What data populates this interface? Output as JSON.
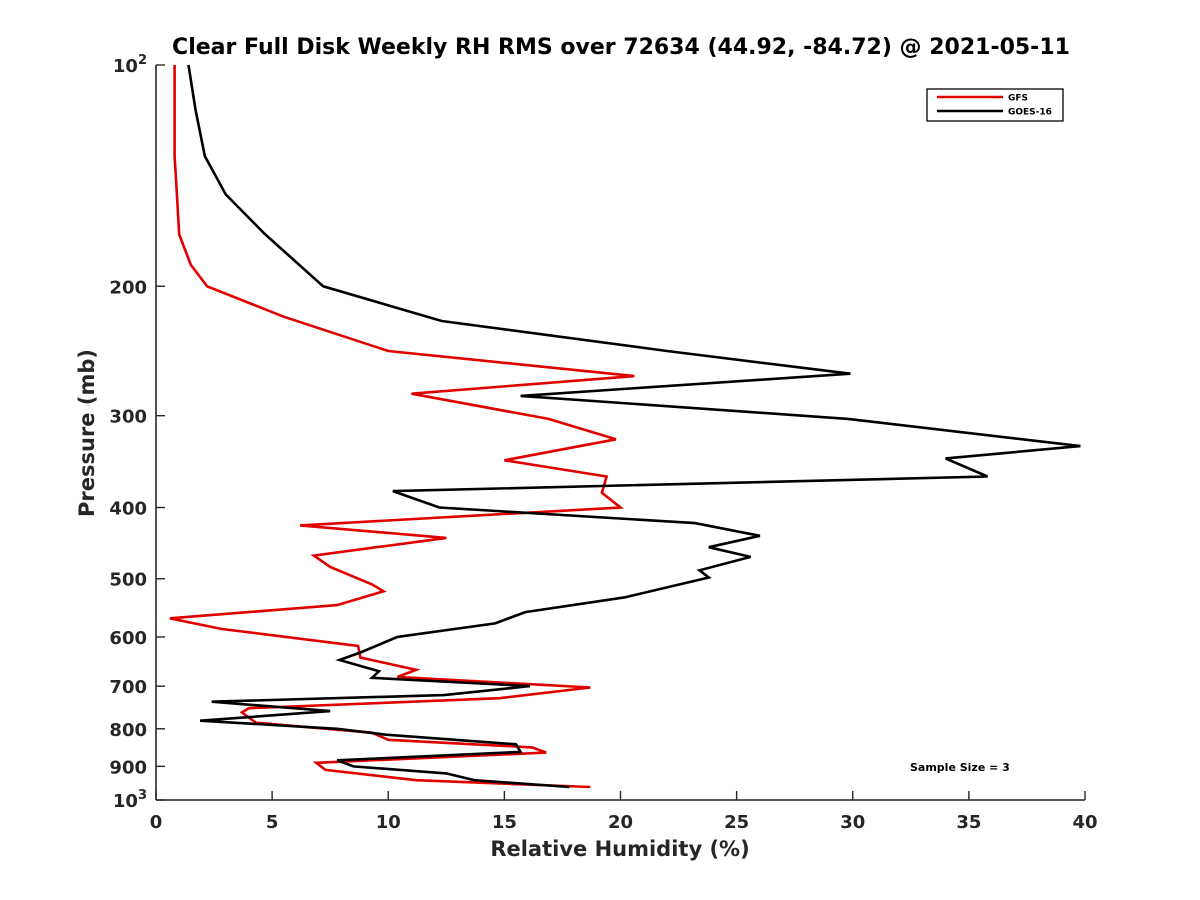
{
  "chart_data": {
    "type": "line",
    "title": "Clear Full Disk Weekly RH RMS over 72634 (44.92, -84.72) @ 2021-05-11",
    "xlabel": "Relative Humidity (%)",
    "ylabel": "Pressure (mb)",
    "xlim": [
      0,
      40
    ],
    "ylim": [
      100,
      1000
    ],
    "yscale": "log",
    "yreversed": true,
    "x_ticks": [
      "0",
      "5",
      "10",
      "15",
      "20",
      "25",
      "30",
      "35",
      "40"
    ],
    "y_ticks": [
      {
        "value": 100,
        "base": "10",
        "exp": "2"
      },
      {
        "value": 200,
        "label": "200"
      },
      {
        "value": 300,
        "label": "300"
      },
      {
        "value": 400,
        "label": "400"
      },
      {
        "value": 500,
        "label": "500"
      },
      {
        "value": 600,
        "label": "600"
      },
      {
        "value": 700,
        "label": "700"
      },
      {
        "value": 800,
        "label": "800"
      },
      {
        "value": 900,
        "label": "900"
      },
      {
        "value": 1000,
        "base": "10",
        "exp": "3"
      }
    ],
    "legend_position": "top-right",
    "annotation": "Sample Size = 3",
    "series": [
      {
        "name": "GFS",
        "color": "#e00000",
        "points": [
          [
            0.8,
            100
          ],
          [
            0.8,
            115
          ],
          [
            0.8,
            133
          ],
          [
            0.9,
            150
          ],
          [
            1.0,
            170
          ],
          [
            1.5,
            187
          ],
          [
            2.2,
            200
          ],
          [
            5.5,
            220
          ],
          [
            10.0,
            245
          ],
          [
            20.6,
            265
          ],
          [
            11.0,
            280
          ],
          [
            16.9,
            303
          ],
          [
            19.8,
            323
          ],
          [
            15.0,
            345
          ],
          [
            19.4,
            363
          ],
          [
            19.2,
            382
          ],
          [
            20.0,
            400
          ],
          [
            6.2,
            423
          ],
          [
            12.5,
            440
          ],
          [
            6.8,
            465
          ],
          [
            7.5,
            482
          ],
          [
            9.3,
            509
          ],
          [
            9.8,
            520
          ],
          [
            7.8,
            543
          ],
          [
            0.6,
            566
          ],
          [
            2.8,
            585
          ],
          [
            8.7,
            617
          ],
          [
            8.8,
            640
          ],
          [
            11.2,
            665
          ],
          [
            10.4,
            680
          ],
          [
            18.7,
            703
          ],
          [
            14.8,
            727
          ],
          [
            4.0,
            750
          ],
          [
            3.7,
            760
          ],
          [
            4.3,
            785
          ],
          [
            9.3,
            810
          ],
          [
            10.0,
            828
          ],
          [
            16.2,
            848
          ],
          [
            16.8,
            862
          ],
          [
            6.9,
            890
          ],
          [
            7.3,
            910
          ],
          [
            11.2,
            940
          ],
          [
            18.7,
            960
          ]
        ]
      },
      {
        "name": "GOES-16",
        "color": "#000000",
        "points": [
          [
            1.4,
            100
          ],
          [
            1.7,
            115
          ],
          [
            2.1,
            133
          ],
          [
            3.0,
            150
          ],
          [
            4.7,
            170
          ],
          [
            7.2,
            200
          ],
          [
            12.3,
            223
          ],
          [
            22.0,
            245
          ],
          [
            29.9,
            263
          ],
          [
            15.7,
            282
          ],
          [
            29.8,
            303
          ],
          [
            39.8,
            330
          ],
          [
            34.0,
            343
          ],
          [
            35.8,
            363
          ],
          [
            10.2,
            380
          ],
          [
            12.2,
            400
          ],
          [
            23.2,
            420
          ],
          [
            26.0,
            437
          ],
          [
            23.8,
            453
          ],
          [
            25.6,
            467
          ],
          [
            23.4,
            487
          ],
          [
            23.8,
            498
          ],
          [
            20.2,
            530
          ],
          [
            15.9,
            555
          ],
          [
            14.6,
            575
          ],
          [
            10.4,
            600
          ],
          [
            8.8,
            630
          ],
          [
            7.9,
            645
          ],
          [
            9.6,
            668
          ],
          [
            9.3,
            682
          ],
          [
            16.1,
            700
          ],
          [
            12.4,
            720
          ],
          [
            2.4,
            735
          ],
          [
            7.5,
            757
          ],
          [
            1.9,
            780
          ],
          [
            7.8,
            800
          ],
          [
            9.9,
            815
          ],
          [
            15.5,
            840
          ],
          [
            15.7,
            860
          ],
          [
            7.8,
            883
          ],
          [
            8.5,
            900
          ],
          [
            12.5,
            920
          ],
          [
            13.7,
            940
          ],
          [
            17.8,
            960
          ]
        ]
      }
    ]
  }
}
